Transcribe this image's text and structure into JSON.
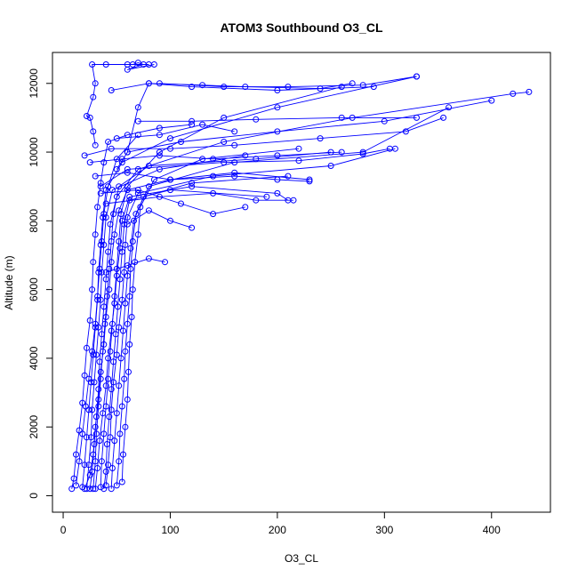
{
  "chart_data": {
    "type": "line",
    "title": "ATOM3 Southbound O3_CL",
    "xlabel": "O3_CL",
    "ylabel": "Altitude (m)",
    "xlim": [
      0,
      450
    ],
    "ylim": [
      0,
      13000
    ],
    "x_ticks": [
      0,
      100,
      200,
      300,
      400
    ],
    "y_ticks": [
      0,
      2000,
      4000,
      6000,
      8000,
      10000,
      12000
    ],
    "grid": false,
    "legend": "none",
    "color": "#0000ff",
    "series": [
      {
        "points": [
          [
            8,
            200
          ],
          [
            10,
            500
          ],
          [
            12,
            1200
          ],
          [
            15,
            1900
          ],
          [
            18,
            2700
          ],
          [
            20,
            3500
          ],
          [
            22,
            4300
          ],
          [
            25,
            5100
          ],
          [
            27,
            6000
          ],
          [
            28,
            6800
          ],
          [
            30,
            7600
          ],
          [
            32,
            8400
          ],
          [
            35,
            9100
          ],
          [
            38,
            9700
          ],
          [
            42,
            10300
          ],
          [
            60,
            10500
          ],
          [
            90,
            10700
          ],
          [
            120,
            10800
          ]
        ]
      },
      {
        "points": [
          [
            20,
            200
          ],
          [
            25,
            600
          ],
          [
            28,
            1200
          ],
          [
            30,
            2000
          ],
          [
            33,
            2800
          ],
          [
            35,
            3600
          ],
          [
            38,
            4400
          ],
          [
            40,
            5200
          ],
          [
            43,
            6000
          ],
          [
            45,
            6800
          ],
          [
            48,
            7600
          ],
          [
            52,
            8300
          ],
          [
            60,
            8900
          ],
          [
            100,
            9200
          ],
          [
            160,
            9400
          ],
          [
            230,
            9200
          ]
        ]
      },
      {
        "points": [
          [
            30,
            200
          ],
          [
            32,
            800
          ],
          [
            34,
            1600
          ],
          [
            37,
            2400
          ],
          [
            40,
            3200
          ],
          [
            42,
            4000
          ],
          [
            45,
            4800
          ],
          [
            48,
            5600
          ],
          [
            50,
            6400
          ],
          [
            53,
            7200
          ],
          [
            55,
            8000
          ],
          [
            62,
            8700
          ],
          [
            120,
            9000
          ],
          [
            200,
            8800
          ],
          [
            210,
            8600
          ]
        ]
      },
      {
        "points": [
          [
            40,
            300
          ],
          [
            42,
            900
          ],
          [
            44,
            1700
          ],
          [
            45,
            2500
          ],
          [
            47,
            3300
          ],
          [
            50,
            4100
          ],
          [
            52,
            4900
          ],
          [
            55,
            5700
          ],
          [
            57,
            6500
          ],
          [
            58,
            7300
          ],
          [
            60,
            8100
          ],
          [
            70,
            8800
          ],
          [
            140,
            9300
          ],
          [
            250,
            9600
          ],
          [
            310,
            10100
          ]
        ]
      },
      {
        "points": [
          [
            50,
            300
          ],
          [
            52,
            1000
          ],
          [
            53,
            1800
          ],
          [
            55,
            2600
          ],
          [
            57,
            3400
          ],
          [
            58,
            4200
          ],
          [
            60,
            5000
          ],
          [
            62,
            5800
          ],
          [
            63,
            6600
          ],
          [
            65,
            7400
          ],
          [
            68,
            8200
          ],
          [
            80,
            9000
          ],
          [
            160,
            9700
          ],
          [
            280,
            10000
          ],
          [
            360,
            11300
          ]
        ]
      },
      {
        "points": [
          [
            25,
            200
          ],
          [
            27,
            700
          ],
          [
            29,
            1500
          ],
          [
            31,
            2300
          ],
          [
            33,
            3100
          ],
          [
            34,
            3900
          ],
          [
            36,
            4700
          ],
          [
            38,
            5500
          ],
          [
            40,
            6300
          ],
          [
            42,
            7100
          ],
          [
            44,
            7900
          ],
          [
            50,
            8700
          ],
          [
            70,
            9500
          ],
          [
            150,
            10300
          ],
          [
            270,
            11000
          ],
          [
            420,
            11700
          ],
          [
            435,
            11750
          ]
        ]
      },
      {
        "points": [
          [
            18,
            250
          ],
          [
            20,
            900
          ],
          [
            22,
            1700
          ],
          [
            24,
            2500
          ],
          [
            26,
            3300
          ],
          [
            28,
            4100
          ],
          [
            30,
            4900
          ],
          [
            32,
            5700
          ],
          [
            33,
            6500
          ],
          [
            35,
            7300
          ],
          [
            37,
            8100
          ],
          [
            40,
            8900
          ],
          [
            55,
            9700
          ],
          [
            100,
            10400
          ],
          [
            200,
            11300
          ],
          [
            330,
            12200
          ]
        ]
      },
      {
        "points": [
          [
            35,
            250
          ],
          [
            36,
            1000
          ],
          [
            38,
            1800
          ],
          [
            40,
            2600
          ],
          [
            42,
            3400
          ],
          [
            44,
            4200
          ],
          [
            46,
            5000
          ],
          [
            48,
            5800
          ],
          [
            50,
            6600
          ],
          [
            52,
            7400
          ],
          [
            54,
            8200
          ],
          [
            60,
            9000
          ],
          [
            90,
            10000
          ],
          [
            150,
            11000
          ],
          [
            260,
            11900
          ]
        ]
      },
      {
        "points": [
          [
            45,
            200
          ],
          [
            46,
            800
          ],
          [
            48,
            1600
          ],
          [
            50,
            2400
          ],
          [
            52,
            3200
          ],
          [
            54,
            4000
          ],
          [
            56,
            4800
          ],
          [
            58,
            5600
          ],
          [
            60,
            6400
          ],
          [
            63,
            7200
          ],
          [
            66,
            8000
          ],
          [
            75,
            8700
          ],
          [
            120,
            9100
          ],
          [
            210,
            9300
          ]
        ]
      },
      {
        "points": [
          [
            12,
            300
          ],
          [
            15,
            1000
          ],
          [
            18,
            1800
          ],
          [
            21,
            2600
          ],
          [
            24,
            3400
          ],
          [
            27,
            4200
          ],
          [
            30,
            5000
          ],
          [
            32,
            5800
          ],
          [
            34,
            6600
          ],
          [
            36,
            7400
          ],
          [
            38,
            8200
          ],
          [
            42,
            9000
          ],
          [
            50,
            9800
          ],
          [
            70,
            10500
          ]
        ]
      },
      {
        "points": [
          [
            28,
            200
          ],
          [
            30,
            1000
          ],
          [
            31,
            1800
          ],
          [
            33,
            2600
          ],
          [
            35,
            3400
          ],
          [
            37,
            4200
          ],
          [
            39,
            5000
          ],
          [
            41,
            5800
          ],
          [
            43,
            6600
          ],
          [
            45,
            7400
          ],
          [
            47,
            8200
          ],
          [
            52,
            9000
          ],
          [
            80,
            9600
          ],
          [
            180,
            9800
          ],
          [
            250,
            10000
          ]
        ]
      },
      {
        "points": [
          [
            55,
            400
          ],
          [
            56,
            1200
          ],
          [
            58,
            2000
          ],
          [
            60,
            2800
          ],
          [
            61,
            3600
          ],
          [
            62,
            4400
          ],
          [
            64,
            5200
          ],
          [
            65,
            6000
          ],
          [
            67,
            6800
          ],
          [
            70,
            7600
          ],
          [
            72,
            8400
          ],
          [
            85,
            9200
          ],
          [
            130,
            9800
          ],
          [
            220,
            10100
          ]
        ]
      },
      {
        "points": [
          [
            22,
            200
          ],
          [
            24,
            900
          ],
          [
            26,
            1700
          ],
          [
            27,
            2500
          ],
          [
            29,
            3300
          ],
          [
            31,
            4100
          ],
          [
            33,
            4900
          ],
          [
            35,
            5700
          ],
          [
            36,
            6500
          ],
          [
            38,
            7300
          ],
          [
            40,
            8100
          ],
          [
            46,
            8900
          ],
          [
            90,
            9500
          ],
          [
            170,
            9900
          ]
        ]
      },
      {
        "points": [
          [
            38,
            200
          ],
          [
            40,
            700
          ],
          [
            41,
            1500
          ],
          [
            43,
            2300
          ],
          [
            45,
            3100
          ],
          [
            47,
            3900
          ],
          [
            49,
            4700
          ],
          [
            51,
            5500
          ],
          [
            53,
            6300
          ],
          [
            55,
            7100
          ],
          [
            57,
            7900
          ],
          [
            62,
            8600
          ],
          [
            100,
            8900
          ],
          [
            190,
            8700
          ]
        ]
      },
      {
        "points": [
          [
            30,
            10200
          ],
          [
            28,
            10600
          ],
          [
            25,
            11000
          ],
          [
            22,
            11050
          ],
          [
            28,
            11600
          ],
          [
            30,
            12000
          ],
          [
            27,
            12550
          ],
          [
            40,
            12550
          ],
          [
            60,
            12550
          ],
          [
            80,
            12550
          ]
        ]
      },
      {
        "points": [
          [
            60,
            10000
          ],
          [
            70,
            11300
          ],
          [
            80,
            12000
          ],
          [
            120,
            11900
          ],
          [
            200,
            11800
          ],
          [
            290,
            11900
          ]
        ]
      },
      {
        "points": [
          [
            50,
            9500
          ],
          [
            60,
            10000
          ],
          [
            110,
            10300
          ],
          [
            200,
            10600
          ],
          [
            300,
            10900
          ],
          [
            400,
            11500
          ]
        ]
      },
      {
        "points": [
          [
            65,
            12550
          ],
          [
            70,
            12600
          ],
          [
            75,
            12550
          ],
          [
            60,
            12400
          ],
          [
            85,
            12550
          ]
        ]
      },
      {
        "points": [
          [
            35,
            9000
          ],
          [
            60,
            9500
          ],
          [
            150,
            9700
          ],
          [
            220,
            9750
          ],
          [
            280,
            9950
          ],
          [
            305,
            10100
          ]
        ]
      },
      {
        "points": [
          [
            40,
            8500
          ],
          [
            90,
            8700
          ],
          [
            140,
            8800
          ],
          [
            180,
            8600
          ],
          [
            215,
            8600
          ]
        ]
      },
      {
        "points": [
          [
            20,
            9900
          ],
          [
            45,
            10100
          ],
          [
            100,
            10100
          ],
          [
            160,
            10200
          ],
          [
            240,
            10400
          ],
          [
            320,
            10600
          ],
          [
            355,
            11000
          ]
        ]
      },
      {
        "points": [
          [
            25,
            9700
          ],
          [
            55,
            9800
          ],
          [
            90,
            9900
          ],
          [
            140,
            9800
          ],
          [
            200,
            9900
          ],
          [
            260,
            10000
          ]
        ]
      },
      {
        "points": [
          [
            30,
            9300
          ],
          [
            60,
            9400
          ],
          [
            100,
            9200
          ],
          [
            160,
            9300
          ],
          [
            200,
            9200
          ],
          [
            230,
            9150
          ]
        ]
      },
      {
        "points": [
          [
            45,
            11800
          ],
          [
            80,
            12000
          ],
          [
            130,
            11950
          ],
          [
            170,
            11900
          ],
          [
            240,
            11850
          ],
          [
            270,
            12000
          ]
        ]
      },
      {
        "points": [
          [
            35,
            8800
          ],
          [
            70,
            8900
          ],
          [
            110,
            8500
          ],
          [
            140,
            8200
          ],
          [
            170,
            8400
          ]
        ]
      },
      {
        "points": [
          [
            50,
            10400
          ],
          [
            90,
            10500
          ],
          [
            130,
            10800
          ],
          [
            160,
            10600
          ]
        ]
      },
      {
        "points": [
          [
            60,
            7900
          ],
          [
            80,
            8300
          ],
          [
            100,
            8000
          ],
          [
            120,
            7800
          ]
        ]
      },
      {
        "points": [
          [
            40,
            6500
          ],
          [
            60,
            6700
          ],
          [
            80,
            6900
          ],
          [
            95,
            6800
          ]
        ]
      },
      {
        "points": [
          [
            90,
            12000
          ],
          [
            150,
            11900
          ],
          [
            210,
            11900
          ],
          [
            280,
            11950
          ],
          [
            330,
            12200
          ]
        ]
      },
      {
        "points": [
          [
            70,
            10900
          ],
          [
            120,
            10900
          ],
          [
            180,
            10950
          ],
          [
            260,
            11000
          ],
          [
            330,
            11000
          ]
        ]
      }
    ]
  }
}
